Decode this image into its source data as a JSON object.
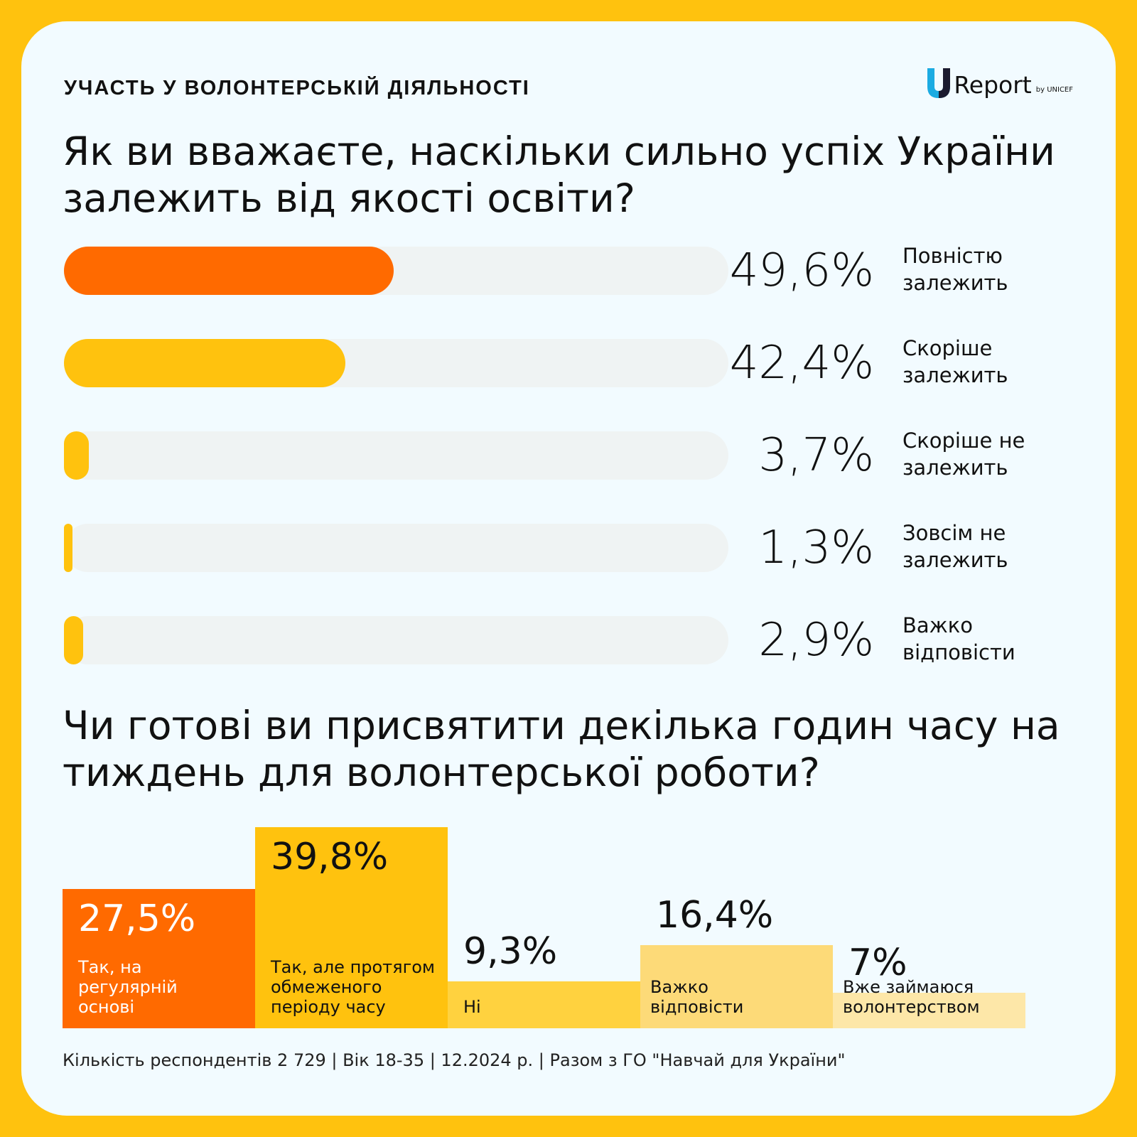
{
  "header": {
    "section_title": "УЧАСТЬ У ВОЛОНТЕРСЬКІЙ ДІЯЛЬНОСТІ",
    "logo_text": "Report",
    "logo_by": "by UNICEF"
  },
  "colors": {
    "background": "#FFC20E",
    "card": "#F2FBFF",
    "orange": "#FF6A00",
    "yellow": "#FFC20E",
    "track": "#EFF3F3",
    "logo_blue": "#1CABE2"
  },
  "chart_data": [
    {
      "type": "bar",
      "orientation": "horizontal",
      "title": "Як ви вважаєте, наскільки сильно успіх України залежить від якості освіти?",
      "categories": [
        "Повністю залежить",
        "Скоріше залежить",
        "Скоріше не залежить",
        "Зовсім не залежить",
        "Важко відповісти"
      ],
      "values": [
        49.6,
        42.4,
        3.7,
        1.3,
        2.9
      ],
      "value_labels": [
        "49,6%",
        "42,4%",
        "3,7%",
        "1,3%",
        "2,9%"
      ],
      "category_lines": [
        [
          "Повністю",
          "залежить"
        ],
        [
          "Скоріше",
          "залежить"
        ],
        [
          "Скоріше не",
          "залежить"
        ],
        [
          "Зовсім не",
          "залежить"
        ],
        [
          "Важко",
          "відповісти"
        ]
      ],
      "colors": [
        "#FF6A00",
        "#FFC20E",
        "#FFC20E",
        "#FFC20E",
        "#FFC20E"
      ],
      "xlim": [
        0,
        100
      ],
      "grid": false
    },
    {
      "type": "bar",
      "orientation": "vertical",
      "title": "Чи готові ви присвятити декілька годин часу на тиждень для волонтерської роботи?",
      "categories": [
        "Так, на регулярній основі",
        "Так, але протягом обмеженого періоду часу",
        "Ні",
        "Важко відповісти",
        "Вже займаюся волонтерством"
      ],
      "values": [
        27.5,
        39.8,
        9.3,
        16.4,
        7
      ],
      "value_labels": [
        "27,5%",
        "39,8%",
        "9,3%",
        "16,4%",
        "7%"
      ],
      "category_lines": [
        [
          "Так, на",
          "регулярній",
          "основі"
        ],
        [
          "Так, але протягом",
          "обмеженого",
          "періоду часу"
        ],
        [
          "Ні"
        ],
        [
          "Важко",
          "відповісти"
        ],
        [
          "Вже займаюся",
          "волонтерством"
        ]
      ],
      "colors": [
        "#FF6A00",
        "#FFC20E",
        "#FFD23F",
        "#FDDA78",
        "#FDE7A8"
      ],
      "ylim": [
        0,
        39.8
      ],
      "grid": false
    }
  ],
  "footer": {
    "text": "Кількість респондентів 2 729 | Вік 18-35 | 12.2024 р. | Разом з ГО \"Навчай для України\""
  }
}
